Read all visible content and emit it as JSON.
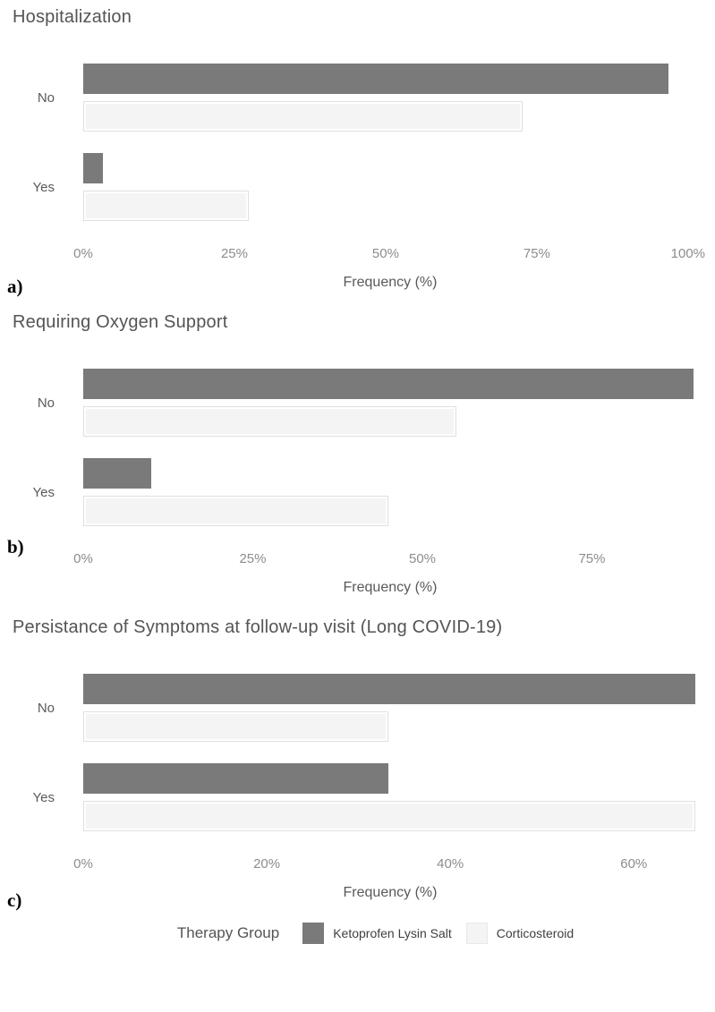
{
  "colors": {
    "bar_dark": "#7a7a7a",
    "bar_light": "#f4f4f4",
    "bar_light_border": "#e0e0e0",
    "title_text": "#545454",
    "tick_text": "#8c8c8c",
    "category_text": "#595959",
    "panel_letter_text": "#000000"
  },
  "legend": {
    "title": "Therapy Group",
    "position": "bottom-center",
    "items": [
      {
        "label": "Ketoprofen Lysin Salt",
        "swatch": "dark"
      },
      {
        "label": "Corticosteroid",
        "swatch": "light"
      }
    ]
  },
  "chart_data": [
    {
      "id": "a",
      "panel_label": "a)",
      "type": "bar",
      "orientation": "horizontal",
      "title": "Hospitalization",
      "categories": [
        "No",
        "Yes"
      ],
      "series": [
        {
          "name": "Ketoprofen Lysin Salt",
          "values": [
            96.7,
            3.3
          ]
        },
        {
          "name": "Corticosteroid",
          "values": [
            72.7,
            27.3
          ]
        }
      ],
      "xlabel": "Frequency (%)",
      "ylabel": "",
      "x_ticks": [
        "0%",
        "25%",
        "50%",
        "75%",
        "100%"
      ],
      "x_tick_values": [
        0,
        25,
        50,
        75,
        100
      ],
      "xlim": [
        0,
        101.5
      ],
      "grid": false
    },
    {
      "id": "b",
      "panel_label": "b)",
      "type": "bar",
      "orientation": "horizontal",
      "title": "Requiring Oxygen Support",
      "categories": [
        "No",
        "Yes"
      ],
      "series": [
        {
          "name": "Ketoprofen Lysin Salt",
          "values": [
            90,
            10
          ]
        },
        {
          "name": "Corticosteroid",
          "values": [
            55,
            45
          ]
        }
      ],
      "xlabel": "Frequency (%)",
      "ylabel": "",
      "x_ticks": [
        "0%",
        "25%",
        "50%",
        "75%"
      ],
      "x_tick_values": [
        0,
        25,
        50,
        75
      ],
      "xlim": [
        0,
        90.5
      ],
      "grid": false
    },
    {
      "id": "c",
      "panel_label": "c)",
      "type": "bar",
      "orientation": "horizontal",
      "title": "Persistance of Symptoms at follow-up visit (Long COVID-19)",
      "categories": [
        "No",
        "Yes"
      ],
      "series": [
        {
          "name": "Ketoprofen Lysin Salt",
          "values": [
            66.7,
            33.3
          ]
        },
        {
          "name": "Corticosteroid",
          "values": [
            33.3,
            66.7
          ]
        }
      ],
      "xlabel": "Frequency (%)",
      "ylabel": "",
      "x_ticks": [
        "0%",
        "20%",
        "40%",
        "60%"
      ],
      "x_tick_values": [
        0,
        20,
        40,
        60
      ],
      "xlim": [
        0,
        66.9
      ],
      "grid": false
    }
  ]
}
